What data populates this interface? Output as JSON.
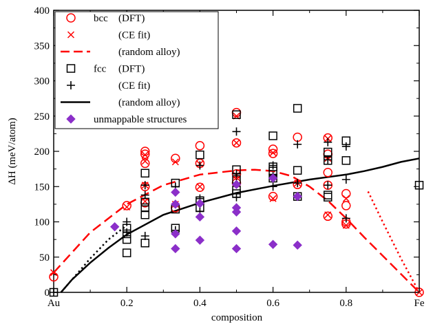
{
  "chart_data": {
    "type": "scatter",
    "xlabel": "composition",
    "ylabel": "ΔH (meV/atom)",
    "xlim": [
      0,
      1
    ],
    "ylim": [
      0,
      400
    ],
    "x_ticks": [
      {
        "value": 0,
        "label": "Au"
      },
      {
        "value": 0.2,
        "label": "0.2"
      },
      {
        "value": 0.4,
        "label": "0.4"
      },
      {
        "value": 0.6,
        "label": "0.6"
      },
      {
        "value": 0.8,
        "label": "0.8"
      },
      {
        "value": 1,
        "label": "Fe"
      }
    ],
    "y_ticks": [
      0,
      50,
      100,
      150,
      200,
      250,
      300,
      350,
      400
    ],
    "legend": {
      "placement": "top-left",
      "entries": [
        {
          "series": "bcc_dft",
          "prefix": "bcc",
          "text": "(DFT)"
        },
        {
          "series": "bcc_ce",
          "prefix": "",
          "text": "(CE fit)"
        },
        {
          "series": "bcc_random",
          "prefix": "",
          "text": "(random alloy)"
        },
        {
          "series": "fcc_dft",
          "prefix": "fcc",
          "text": "(DFT)"
        },
        {
          "series": "fcc_ce",
          "prefix": "",
          "text": "(CE fit)"
        },
        {
          "series": "fcc_random",
          "prefix": "",
          "text": "(random alloy)"
        },
        {
          "series": "unmappable",
          "prefix": "",
          "text": "unmappable structures"
        }
      ]
    },
    "series": [
      {
        "id": "bcc_dft",
        "marker": "circle",
        "color": "#ff0000",
        "points": [
          [
            0,
            22
          ],
          [
            0.2,
            123
          ],
          [
            0.25,
            200
          ],
          [
            0.25,
            196
          ],
          [
            0.25,
            183
          ],
          [
            0.25,
            150
          ],
          [
            0.25,
            127
          ],
          [
            0.333,
            190
          ],
          [
            0.333,
            120
          ],
          [
            0.4,
            208
          ],
          [
            0.4,
            183
          ],
          [
            0.4,
            149
          ],
          [
            0.5,
            255
          ],
          [
            0.5,
            212
          ],
          [
            0.5,
            168
          ],
          [
            0.5,
            155
          ],
          [
            0.6,
            203
          ],
          [
            0.6,
            197
          ],
          [
            0.6,
            136
          ],
          [
            0.667,
            220
          ],
          [
            0.667,
            153
          ],
          [
            0.75,
            219
          ],
          [
            0.75,
            196
          ],
          [
            0.75,
            170
          ],
          [
            0.75,
            152
          ],
          [
            0.75,
            108
          ],
          [
            0.8,
            140
          ],
          [
            0.8,
            123
          ],
          [
            0.8,
            100
          ],
          [
            0.8,
            97
          ],
          [
            1,
            0
          ]
        ]
      },
      {
        "id": "bcc_ce",
        "marker": "x",
        "color": "#ff0000",
        "points": [
          [
            0,
            28
          ],
          [
            0.2,
            121
          ],
          [
            0.25,
            195
          ],
          [
            0.25,
            186
          ],
          [
            0.25,
            152
          ],
          [
            0.25,
            129
          ],
          [
            0.333,
            185
          ],
          [
            0.333,
            125
          ],
          [
            0.4,
            182
          ],
          [
            0.4,
            150
          ],
          [
            0.5,
            250
          ],
          [
            0.5,
            212
          ],
          [
            0.5,
            166
          ],
          [
            0.6,
            198
          ],
          [
            0.6,
            133
          ],
          [
            0.667,
            155
          ],
          [
            0.75,
            218
          ],
          [
            0.75,
            190
          ],
          [
            0.75,
            110
          ],
          [
            0.8,
            133
          ],
          [
            0.8,
            95
          ],
          [
            1,
            0
          ]
        ]
      },
      {
        "id": "fcc_dft",
        "marker": "square",
        "color": "#000000",
        "points": [
          [
            0,
            0
          ],
          [
            0.2,
            91
          ],
          [
            0.2,
            83
          ],
          [
            0.2,
            75
          ],
          [
            0.2,
            56
          ],
          [
            0.25,
            169
          ],
          [
            0.25,
            128
          ],
          [
            0.25,
            120
          ],
          [
            0.25,
            110
          ],
          [
            0.25,
            70
          ],
          [
            0.333,
            155
          ],
          [
            0.333,
            118
          ],
          [
            0.333,
            91
          ],
          [
            0.4,
            195
          ],
          [
            0.4,
            130
          ],
          [
            0.4,
            120
          ],
          [
            0.5,
            252
          ],
          [
            0.5,
            174
          ],
          [
            0.5,
            160
          ],
          [
            0.5,
            145
          ],
          [
            0.5,
            140
          ],
          [
            0.6,
            222
          ],
          [
            0.6,
            178
          ],
          [
            0.6,
            172
          ],
          [
            0.6,
            162
          ],
          [
            0.667,
            261
          ],
          [
            0.667,
            173
          ],
          [
            0.667,
            136
          ],
          [
            0.75,
            199
          ],
          [
            0.75,
            187
          ],
          [
            0.75,
            138
          ],
          [
            0.75,
            135
          ],
          [
            0.8,
            215
          ],
          [
            0.8,
            187
          ],
          [
            1,
            152
          ]
        ]
      },
      {
        "id": "fcc_ce",
        "marker": "plus",
        "color": "#000000",
        "points": [
          [
            0,
            0
          ],
          [
            0.2,
            100
          ],
          [
            0.2,
            85
          ],
          [
            0.25,
            152
          ],
          [
            0.25,
            138
          ],
          [
            0.25,
            80
          ],
          [
            0.333,
            150
          ],
          [
            0.333,
            125
          ],
          [
            0.333,
            88
          ],
          [
            0.4,
            180
          ],
          [
            0.4,
            133
          ],
          [
            0.4,
            125
          ],
          [
            0.4,
            115
          ],
          [
            0.5,
            228
          ],
          [
            0.5,
            168
          ],
          [
            0.5,
            155
          ],
          [
            0.5,
            135
          ],
          [
            0.6,
            180
          ],
          [
            0.6,
            165
          ],
          [
            0.6,
            150
          ],
          [
            0.667,
            210
          ],
          [
            0.667,
            155
          ],
          [
            0.75,
            213
          ],
          [
            0.75,
            188
          ],
          [
            0.75,
            152
          ],
          [
            0.8,
            207
          ],
          [
            0.8,
            160
          ],
          [
            0.8,
            105
          ]
        ]
      },
      {
        "id": "unmappable",
        "marker": "diamond",
        "color": "#8b2fc9",
        "points": [
          [
            0.167,
            93
          ],
          [
            0.333,
            142
          ],
          [
            0.333,
            125
          ],
          [
            0.333,
            83
          ],
          [
            0.333,
            62
          ],
          [
            0.4,
            126
          ],
          [
            0.4,
            107
          ],
          [
            0.4,
            74
          ],
          [
            0.5,
            153
          ],
          [
            0.5,
            120
          ],
          [
            0.5,
            114
          ],
          [
            0.5,
            87
          ],
          [
            0.5,
            62
          ],
          [
            0.6,
            162
          ],
          [
            0.6,
            68
          ],
          [
            0.667,
            136
          ],
          [
            0.667,
            67
          ]
        ]
      },
      {
        "id": "bcc_random",
        "style": "dashed",
        "color": "#ff0000",
        "points": [
          [
            0,
            28
          ],
          [
            0.1,
            85
          ],
          [
            0.2,
            125
          ],
          [
            0.3,
            152
          ],
          [
            0.4,
            167
          ],
          [
            0.5,
            173
          ],
          [
            0.55,
            174
          ],
          [
            0.6,
            172
          ],
          [
            0.65,
            165
          ],
          [
            0.7,
            150
          ],
          [
            0.75,
            130
          ],
          [
            0.8,
            105
          ],
          [
            0.85,
            78
          ],
          [
            0.9,
            52
          ],
          [
            0.95,
            26
          ],
          [
            1,
            0
          ]
        ]
      },
      {
        "id": "bcc_random_dotted",
        "style": "dotted",
        "color": "#ff0000",
        "points": [
          [
            0.86,
            143
          ],
          [
            0.9,
            100
          ],
          [
            0.95,
            48
          ],
          [
            1,
            0
          ]
        ]
      },
      {
        "id": "fcc_random",
        "style": "solid",
        "color": "#000000",
        "points": [
          [
            0.02,
            0
          ],
          [
            0.05,
            18
          ],
          [
            0.1,
            42
          ],
          [
            0.15,
            63
          ],
          [
            0.2,
            82
          ],
          [
            0.3,
            110
          ],
          [
            0.4,
            127
          ],
          [
            0.5,
            141
          ],
          [
            0.6,
            151
          ],
          [
            0.7,
            160
          ],
          [
            0.8,
            167
          ],
          [
            0.85,
            172
          ],
          [
            0.9,
            178
          ],
          [
            0.95,
            185
          ],
          [
            1,
            190
          ]
        ]
      },
      {
        "id": "fcc_random_dotted",
        "style": "dotted",
        "color": "#000000",
        "points": [
          [
            0.02,
            0
          ],
          [
            0.05,
            18
          ],
          [
            0.1,
            48
          ],
          [
            0.15,
            75
          ],
          [
            0.2,
            95
          ]
        ]
      }
    ]
  }
}
